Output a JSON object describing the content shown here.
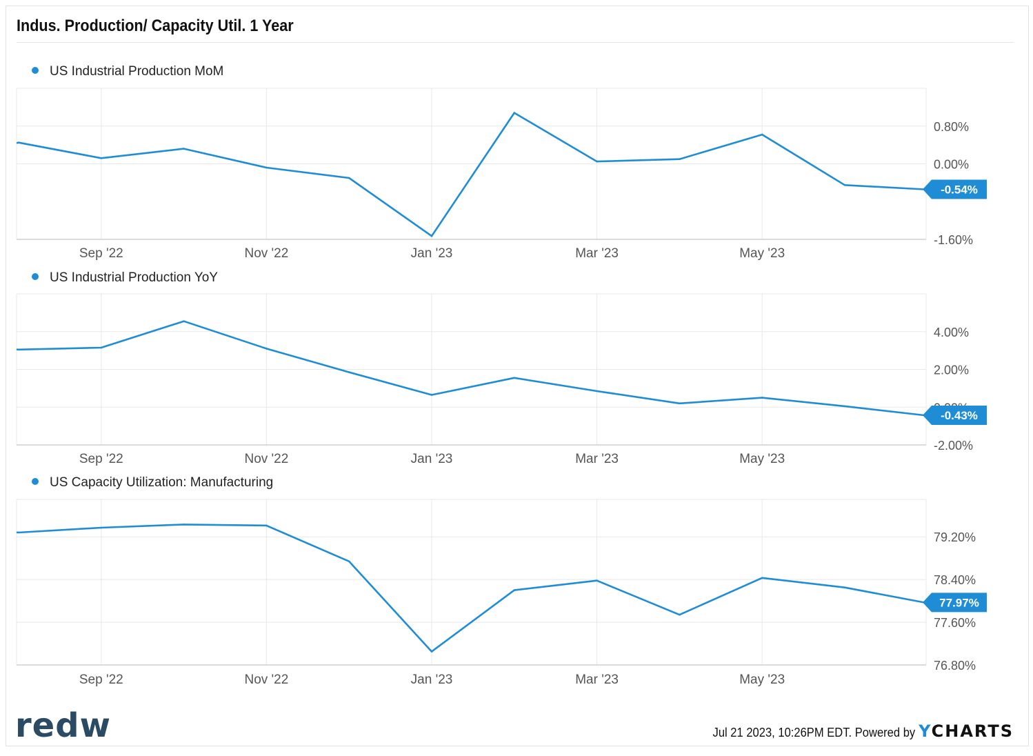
{
  "header": {
    "title": "Indus. Production/ Capacity Util. 1 Year"
  },
  "footer": {
    "brand": "redw",
    "timestamp": "Jul 21 2023, 10:26PM EDT.  Powered by",
    "ycharts_y": "Y",
    "ycharts_rest": "CHARTS"
  },
  "colors": {
    "line": "#1f8dd6",
    "grid": "#e8e8e8",
    "axis_text": "#555555",
    "badge_text": "#ffffff"
  },
  "chart_data": [
    {
      "type": "line",
      "title": "",
      "xlabel": "",
      "ylabel": "",
      "x_tick_labels": [
        "Sep '22",
        "Nov '22",
        "Jan '23",
        "Mar '23",
        "May '23"
      ],
      "x_tick_months": [
        1,
        3,
        5,
        7,
        9
      ],
      "y_tick_labels": [
        "0.80%",
        "0.00%",
        "-1.60%"
      ],
      "y_tick_values": [
        0.8,
        0.0,
        -1.6
      ],
      "ylim": [
        -1.6,
        1.6
      ],
      "grid": true,
      "legend_position": "top-left",
      "series": [
        {
          "name": "US Industrial Production MoM",
          "x": [
            "Aug '22",
            "Sep '22",
            "Oct '22",
            "Nov '22",
            "Dec '22",
            "Jan '23",
            "Feb '23",
            "Mar '23",
            "Apr '23",
            "May '23",
            "Jun '23"
          ],
          "x_months": [
            0,
            1,
            2,
            3,
            4,
            5,
            6,
            7,
            8,
            9,
            10
          ],
          "values": [
            0.45,
            0.12,
            0.32,
            -0.08,
            -0.3,
            -1.53,
            1.08,
            0.05,
            0.1,
            0.62,
            -0.45
          ],
          "extra_x_month": 11,
          "extra_value": -0.54,
          "last_label": "-0.54%"
        }
      ]
    },
    {
      "type": "line",
      "title": "",
      "xlabel": "",
      "ylabel": "",
      "x_tick_labels": [
        "Sep '22",
        "Nov '22",
        "Jan '23",
        "Mar '23",
        "May '23"
      ],
      "x_tick_months": [
        1,
        3,
        5,
        7,
        9
      ],
      "y_tick_labels": [
        "4.00%",
        "2.00%",
        "0.00%",
        "-2.00%"
      ],
      "y_tick_values": [
        4.0,
        2.0,
        0.0,
        -2.0
      ],
      "ylim": [
        -2.0,
        6.0
      ],
      "grid": true,
      "legend_position": "top-left",
      "series": [
        {
          "name": "US Industrial Production YoY",
          "x": [
            "Aug '22",
            "Sep '22",
            "Oct '22",
            "Nov '22",
            "Dec '22",
            "Jan '23",
            "Feb '23",
            "Mar '23",
            "Apr '23",
            "May '23",
            "Jun '23",
            "Jul '23"
          ],
          "x_months": [
            0,
            1,
            2,
            3,
            4,
            5,
            6,
            7,
            8,
            9,
            10,
            11
          ],
          "values": [
            3.05,
            3.15,
            4.55,
            3.1,
            1.85,
            0.65,
            1.55,
            0.85,
            0.2,
            0.5,
            0.05,
            -0.43
          ],
          "last_label": "-0.43%"
        }
      ]
    },
    {
      "type": "line",
      "title": "",
      "xlabel": "",
      "ylabel": "",
      "x_tick_labels": [
        "Sep '22",
        "Nov '22",
        "Jan '23",
        "Mar '23",
        "May '23"
      ],
      "x_tick_months": [
        1,
        3,
        5,
        7,
        9
      ],
      "y_tick_labels": [
        "79.20%",
        "78.40%",
        "77.60%",
        "76.80%"
      ],
      "y_tick_values": [
        79.2,
        78.4,
        77.6,
        76.8
      ],
      "ylim": [
        76.8,
        79.9
      ],
      "grid": true,
      "legend_position": "top-left",
      "series": [
        {
          "name": "US Capacity Utilization: Manufacturing",
          "x": [
            "Aug '22",
            "Sep '22",
            "Oct '22",
            "Nov '22",
            "Dec '22",
            "Jan '23",
            "Feb '23",
            "Mar '23",
            "Apr '23",
            "May '23",
            "Jun '23",
            "Jul '23"
          ],
          "x_months": [
            0,
            1,
            2,
            3,
            4,
            5,
            6,
            7,
            8,
            9,
            10,
            11
          ],
          "values": [
            79.28,
            79.37,
            79.43,
            79.41,
            78.74,
            77.05,
            78.2,
            78.38,
            77.74,
            78.43,
            78.25,
            77.97
          ],
          "last_label": "77.97%"
        }
      ]
    }
  ]
}
